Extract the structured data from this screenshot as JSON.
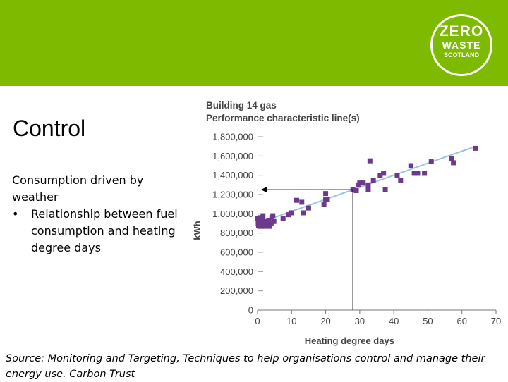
{
  "brand": {
    "banner_color": "#7dba00",
    "logo_line1": "ZERO",
    "logo_line2": "WASTE",
    "logo_line3": "SCOTLAND"
  },
  "slide": {
    "title": "Control",
    "intro": "Consumption driven by weather",
    "bullet_mark": "•",
    "bullet": "Relationship between fuel consumption and heating degree days"
  },
  "caption": "Source: Monitoring and Targeting, Techniques to help organisations control and manage their energy use. Carbon Trust",
  "chart_data": {
    "type": "scatter",
    "title": "Building 14 gas",
    "subtitle": "Performance characteristic line(s)",
    "xlabel": "Heating degree days",
    "ylabel": "kWh",
    "xlim": [
      0,
      70
    ],
    "ylim": [
      0,
      1800000
    ],
    "xticks": [
      0,
      10,
      20,
      30,
      40,
      50,
      60,
      70
    ],
    "yticks": [
      0,
      200000,
      400000,
      600000,
      800000,
      1000000,
      1200000,
      1400000,
      1600000,
      1800000
    ],
    "ytick_labels": [
      "0",
      "200,000",
      "400,000",
      "600,000",
      "800,000",
      "1,000,000",
      "1,200,000",
      "1,400,000",
      "1,600,000",
      "1,800,000"
    ],
    "marker_color": "#6b3a8c",
    "line_color": "#9cc3e0",
    "trend_line": {
      "x": [
        0,
        64
      ],
      "y": [
        900000,
        1700000
      ]
    },
    "reference_x": 28,
    "reference_y": 1250000,
    "points": [
      {
        "x": 0.1,
        "y": 950000
      },
      {
        "x": 0.2,
        "y": 900000
      },
      {
        "x": 0.3,
        "y": 880000
      },
      {
        "x": 0.5,
        "y": 930000
      },
      {
        "x": 0.6,
        "y": 870000
      },
      {
        "x": 0.8,
        "y": 960000
      },
      {
        "x": 1.0,
        "y": 890000
      },
      {
        "x": 1.2,
        "y": 870000
      },
      {
        "x": 1.4,
        "y": 940000
      },
      {
        "x": 1.6,
        "y": 980000
      },
      {
        "x": 1.8,
        "y": 880000
      },
      {
        "x": 2.0,
        "y": 900000
      },
      {
        "x": 2.2,
        "y": 870000
      },
      {
        "x": 2.5,
        "y": 920000
      },
      {
        "x": 2.8,
        "y": 880000
      },
      {
        "x": 3.0,
        "y": 890000
      },
      {
        "x": 3.3,
        "y": 930000
      },
      {
        "x": 3.6,
        "y": 870000
      },
      {
        "x": 4.0,
        "y": 900000
      },
      {
        "x": 4.2,
        "y": 960000
      },
      {
        "x": 4.5,
        "y": 980000
      },
      {
        "x": 4.8,
        "y": 920000
      },
      {
        "x": 7.5,
        "y": 950000
      },
      {
        "x": 9.0,
        "y": 990000
      },
      {
        "x": 10.0,
        "y": 1010000
      },
      {
        "x": 11.5,
        "y": 1140000
      },
      {
        "x": 13.0,
        "y": 1120000
      },
      {
        "x": 13.5,
        "y": 1010000
      },
      {
        "x": 15.0,
        "y": 1060000
      },
      {
        "x": 19.5,
        "y": 1100000
      },
      {
        "x": 20.0,
        "y": 1150000
      },
      {
        "x": 20.5,
        "y": 1150000
      },
      {
        "x": 20.0,
        "y": 1210000
      },
      {
        "x": 28.0,
        "y": 1250000
      },
      {
        "x": 29.0,
        "y": 1240000
      },
      {
        "x": 29.5,
        "y": 1300000
      },
      {
        "x": 30.0,
        "y": 1320000
      },
      {
        "x": 31.0,
        "y": 1320000
      },
      {
        "x": 32.5,
        "y": 1300000
      },
      {
        "x": 32.5,
        "y": 1250000
      },
      {
        "x": 33.0,
        "y": 1550000
      },
      {
        "x": 34.0,
        "y": 1350000
      },
      {
        "x": 36.0,
        "y": 1400000
      },
      {
        "x": 37.0,
        "y": 1420000
      },
      {
        "x": 37.5,
        "y": 1250000
      },
      {
        "x": 41.0,
        "y": 1400000
      },
      {
        "x": 42.0,
        "y": 1350000
      },
      {
        "x": 45.0,
        "y": 1500000
      },
      {
        "x": 46.0,
        "y": 1420000
      },
      {
        "x": 47.0,
        "y": 1420000
      },
      {
        "x": 49.0,
        "y": 1420000
      },
      {
        "x": 51.0,
        "y": 1540000
      },
      {
        "x": 57.0,
        "y": 1570000
      },
      {
        "x": 57.5,
        "y": 1530000
      },
      {
        "x": 64.0,
        "y": 1680000
      }
    ]
  }
}
